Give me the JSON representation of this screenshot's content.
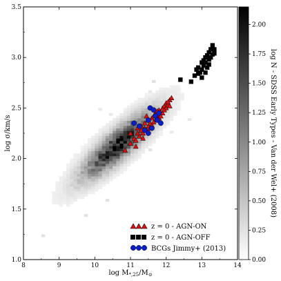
{
  "chart_data": {
    "type": "scatter",
    "xlabel": "log M$_{*,25}$/M$_{\\odot}$",
    "xlabel_main": "log M",
    "xlabel_sub": "*,25",
    "xlabel_tail": "/M",
    "xlabel_odot": "⊙",
    "ylabel": "log σ/km/s",
    "xlim": [
      8,
      14
    ],
    "ylim": [
      1.0,
      3.5
    ],
    "xticks": [
      "8",
      "9",
      "10",
      "11",
      "12",
      "13",
      "14"
    ],
    "yticks": [
      "1.0",
      "1.5",
      "2.0",
      "2.5",
      "3.0",
      "3.5"
    ],
    "colorbar": {
      "label": "log N - SDSS Early Types - Van der Wel+ (2008)",
      "range": [
        0.0,
        2.15
      ],
      "ticks": [
        "0.00",
        "0.25",
        "0.50",
        "0.75",
        "1.00",
        "1.25",
        "1.50",
        "1.75",
        "2.00"
      ]
    },
    "density": {
      "description": "2D histogram of SDSS early types",
      "center": [
        10.6,
        2.12
      ],
      "slope": 0.28
    },
    "legend": {
      "placement": "lower-right",
      "entries": [
        {
          "label": "z = 0 - AGN-ON",
          "marker": "triangle",
          "color": "#dd1111"
        },
        {
          "label": "z = 0 - AGN-OFF",
          "marker": "square",
          "color": "#000000"
        },
        {
          "label": "BCGs Jimmy+ (2013)",
          "marker": "circle",
          "color": "#0b1ecc"
        }
      ]
    },
    "series": [
      {
        "name": "z = 0 - AGN-ON",
        "marker": "triangle",
        "color": "#dd1111",
        "x": [
          10.85,
          11.0,
          11.1,
          11.15,
          11.2,
          11.25,
          11.3,
          11.35,
          11.4,
          11.4,
          11.45,
          11.5,
          11.5,
          11.55,
          11.6,
          11.6,
          11.65,
          11.7,
          11.7,
          11.75,
          11.8,
          11.8,
          11.85,
          11.9,
          11.9,
          11.95,
          12.0,
          12.0,
          12.05,
          12.1,
          12.1,
          12.15,
          11.3,
          11.45,
          11.55,
          11.65,
          11.75,
          11.85,
          11.95,
          12.05,
          11.2,
          11.35,
          11.5,
          11.0,
          11.15
        ],
        "y": [
          2.08,
          2.15,
          2.2,
          2.18,
          2.25,
          2.22,
          2.28,
          2.25,
          2.3,
          2.35,
          2.28,
          2.32,
          2.38,
          2.35,
          2.4,
          2.33,
          2.42,
          2.38,
          2.45,
          2.43,
          2.4,
          2.48,
          2.46,
          2.5,
          2.45,
          2.52,
          2.5,
          2.55,
          2.53,
          2.58,
          2.52,
          2.6,
          2.32,
          2.42,
          2.3,
          2.36,
          2.47,
          2.42,
          2.48,
          2.56,
          2.3,
          2.2,
          2.27,
          2.25,
          2.12
        ]
      },
      {
        "name": "z = 0 - AGN-OFF",
        "marker": "square",
        "color": "#000000",
        "x": [
          12.4,
          12.7,
          12.8,
          12.85,
          12.9,
          12.95,
          13.0,
          13.0,
          13.05,
          13.1,
          13.1,
          13.15,
          13.2,
          13.2,
          13.25,
          13.3,
          13.3,
          13.35,
          13.1,
          13.2,
          13.0,
          13.25,
          12.9,
          13.15,
          13.35,
          13.05
        ],
        "y": [
          2.78,
          2.76,
          2.82,
          2.88,
          2.9,
          2.85,
          2.95,
          2.88,
          2.92,
          3.0,
          2.95,
          3.02,
          3.05,
          2.98,
          3.08,
          3.03,
          3.12,
          3.04,
          2.85,
          2.93,
          2.8,
          3.0,
          2.84,
          2.9,
          3.08,
          2.97
        ]
      },
      {
        "name": "BCGs Jimmy+ (2013)",
        "marker": "circle",
        "color": "#0b1ecc",
        "x": [
          11.1,
          11.25,
          11.4,
          11.5,
          11.55,
          11.6,
          11.7,
          11.75,
          11.8,
          11.85,
          11.5,
          11.65
        ],
        "y": [
          2.35,
          2.32,
          2.28,
          2.38,
          2.5,
          2.3,
          2.42,
          2.38,
          2.45,
          2.35,
          2.25,
          2.48
        ]
      }
    ]
  }
}
